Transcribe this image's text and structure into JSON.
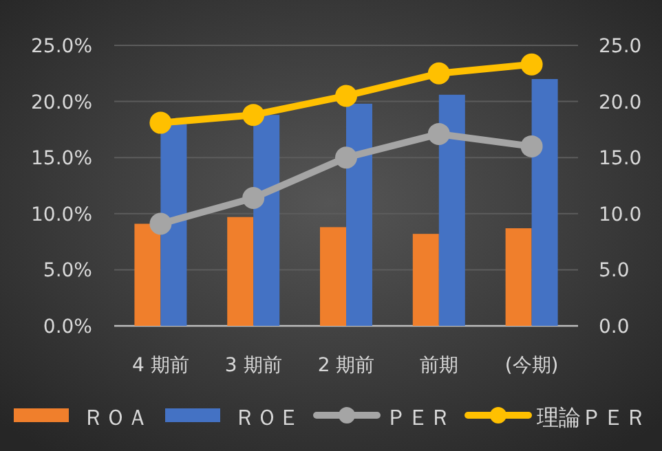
{
  "chart_data": {
    "type": "bar",
    "categories": [
      "4 期前",
      "3 期前",
      "2 期前",
      "前期",
      "(今期)"
    ],
    "series": [
      {
        "name": "ＲＯＡ",
        "color": "#f07f2c",
        "values": [
          9.1,
          9.7,
          8.8,
          8.2,
          8.7
        ]
      },
      {
        "name": "ＲＯＥ",
        "color": "#4472c4",
        "values": [
          18.0,
          18.8,
          19.8,
          20.6,
          22.0
        ]
      },
      {
        "name": "ＰＥＲ",
        "type": "line",
        "axis": "y2",
        "color": "#a5a5a5",
        "values": [
          9.1,
          11.4,
          15.0,
          17.1,
          16.0
        ]
      },
      {
        "name": "理論ＰＥＲ",
        "type": "line",
        "axis": "y2",
        "color": "#ffc000",
        "values": [
          18.1,
          18.8,
          20.5,
          22.5,
          23.3
        ]
      }
    ],
    "ylim": [
      0,
      25
    ],
    "yticks": [
      {
        "value": 0,
        "label": "0.0%"
      },
      {
        "value": 5,
        "label": "5.0%"
      },
      {
        "value": 10,
        "label": "10.0%"
      },
      {
        "value": 15,
        "label": "15.0%"
      },
      {
        "value": 20,
        "label": "20.0%"
      },
      {
        "value": 25,
        "label": "25.0%"
      }
    ],
    "y2lim": [
      0,
      25
    ],
    "y2ticks": [
      {
        "value": 0,
        "label": "0.0"
      },
      {
        "value": 5,
        "label": "5.0"
      },
      {
        "value": 10,
        "label": "10.0"
      },
      {
        "value": 15,
        "label": "15.0"
      },
      {
        "value": 20,
        "label": "20.0"
      },
      {
        "value": 25,
        "label": "25.0"
      }
    ],
    "grid": "y",
    "legend": "bottom",
    "marker": "circle"
  }
}
